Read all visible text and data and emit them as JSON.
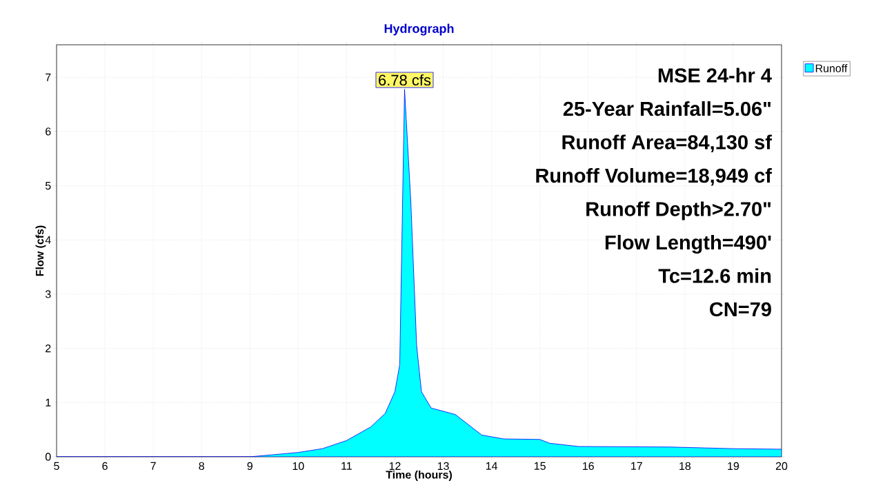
{
  "chart_data": {
    "type": "area",
    "title": "Hydrograph",
    "xlabel": "Time  (hours)",
    "ylabel": "Flow  (cfs)",
    "x": [
      5,
      9,
      10,
      10.5,
      11,
      11.5,
      11.8,
      12,
      12.1,
      12.2,
      12.33,
      12.45,
      12.55,
      12.75,
      13.25,
      13.8,
      14.25,
      15,
      15.2,
      15.8,
      17.7,
      19,
      20
    ],
    "series": [
      {
        "name": "Runoff",
        "color": "#00ffff",
        "values": [
          0,
          0,
          0.08,
          0.15,
          0.3,
          0.55,
          0.8,
          1.2,
          1.7,
          6.78,
          4.7,
          2.05,
          1.2,
          0.9,
          0.78,
          0.4,
          0.33,
          0.32,
          0.25,
          0.19,
          0.18,
          0.15,
          0.14
        ]
      }
    ],
    "xlim": [
      5,
      20
    ],
    "ylim": [
      0,
      7.6
    ],
    "xticks": [
      5,
      6,
      7,
      8,
      9,
      10,
      11,
      12,
      13,
      14,
      15,
      16,
      17,
      18,
      19,
      20
    ],
    "yticks": [
      0,
      1,
      2,
      3,
      4,
      5,
      6,
      7
    ],
    "grid": true,
    "legend": "top right",
    "annotations": [
      {
        "text": "6.78 cfs",
        "x": 12.2,
        "y": 6.78
      },
      "MSE 24-hr 4",
      "25-Year Rainfall=5.06\"",
      "Runoff Area=84,130 sf",
      "Runoff Volume=18,949 cf",
      "Runoff Depth>2.70\"",
      "Flow Length=490'",
      "Tc=12.6 min",
      "CN=79"
    ]
  }
}
